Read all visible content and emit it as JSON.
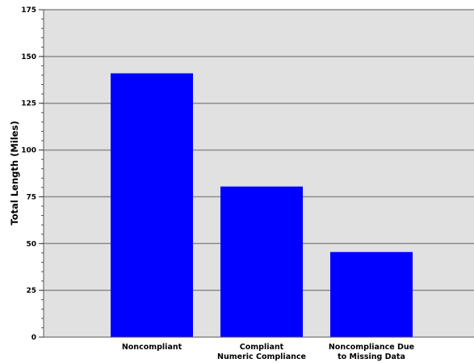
{
  "chart_data": {
    "type": "bar",
    "categories": [
      [
        "Noncompliant"
      ],
      [
        "Compliant",
        "Numeric Compliance"
      ],
      [
        "Noncompliance Due",
        "to Missing Data"
      ]
    ],
    "values": [
      141,
      80.5,
      45.5
    ],
    "title": "",
    "xlabel": "",
    "ylabel": "Total Length (Miles)",
    "ylim": [
      0,
      175
    ],
    "yticks": [
      0,
      25,
      50,
      75,
      100,
      125,
      150,
      175
    ],
    "ytick_labels": [
      "0",
      "25",
      "50",
      "75",
      "100",
      "125",
      "150",
      "175"
    ],
    "grid": true,
    "legend": "none",
    "colors": {
      "bar": "#0000ff",
      "plot_background": "#e1e1e1",
      "gridline": "#8c8c8c"
    }
  }
}
